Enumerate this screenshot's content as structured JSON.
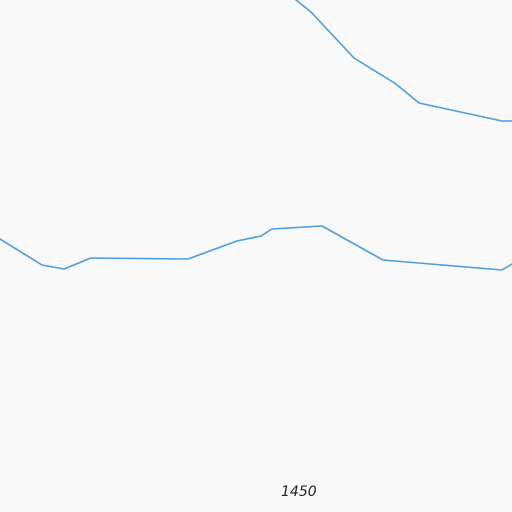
{
  "map": {
    "contour_color": "#4a9be0",
    "background_color": "#f9f9f9",
    "contour_label": "1450"
  }
}
